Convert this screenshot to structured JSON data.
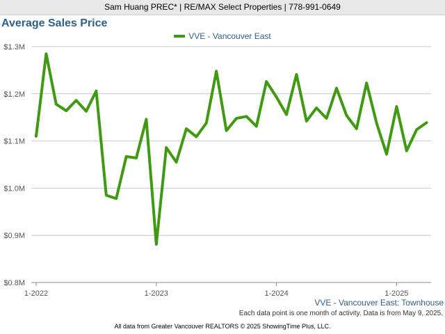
{
  "header": {
    "agent_line": "Sam Huang PREC* | RE/MAX Select Properties | 778-991-0649"
  },
  "chart_data": {
    "type": "line",
    "title": "Average Sales Price",
    "subtitle": "VVE - Vancouver East: Townhouse",
    "footnote": "Each data point is one month of activity. Data is from May 9, 2025.",
    "source": "All data from Greater Vancouver REALTORS © 2025 ShowingTime Plus, LLC.",
    "y_ticks": [
      "$0.8M",
      "$0.9M",
      "$1.0M",
      "$1.1M",
      "$1.2M",
      "$1.3M"
    ],
    "x_ticks": [
      "1-2022",
      "1-2023",
      "1-2024",
      "1-2025"
    ],
    "ylim": [
      0.8,
      1.3
    ],
    "grid": true,
    "legend_position": "top",
    "x": [
      "2022-01",
      "2022-02",
      "2022-03",
      "2022-04",
      "2022-05",
      "2022-06",
      "2022-07",
      "2022-08",
      "2022-09",
      "2022-10",
      "2022-11",
      "2022-12",
      "2023-01",
      "2023-02",
      "2023-03",
      "2023-04",
      "2023-05",
      "2023-06",
      "2023-07",
      "2023-08",
      "2023-09",
      "2023-10",
      "2023-11",
      "2023-12",
      "2024-01",
      "2024-02",
      "2024-03",
      "2024-04",
      "2024-05",
      "2024-06",
      "2024-07",
      "2024-08",
      "2024-09",
      "2024-10",
      "2024-11",
      "2024-12",
      "2025-01",
      "2025-02",
      "2025-03",
      "2025-04"
    ],
    "series": [
      {
        "name": "VVE - Vancouver East",
        "color": "#3f9a12",
        "values": [
          1.11,
          1.285,
          1.178,
          1.164,
          1.186,
          1.163,
          1.206,
          0.985,
          0.978,
          1.067,
          1.064,
          1.146,
          0.881,
          1.086,
          1.055,
          1.126,
          1.109,
          1.138,
          1.248,
          1.122,
          1.148,
          1.152,
          1.131,
          1.226,
          1.193,
          1.156,
          1.241,
          1.142,
          1.17,
          1.148,
          1.212,
          1.154,
          1.126,
          1.223,
          1.138,
          1.072,
          1.173,
          1.079,
          1.124,
          1.139
        ]
      }
    ]
  }
}
